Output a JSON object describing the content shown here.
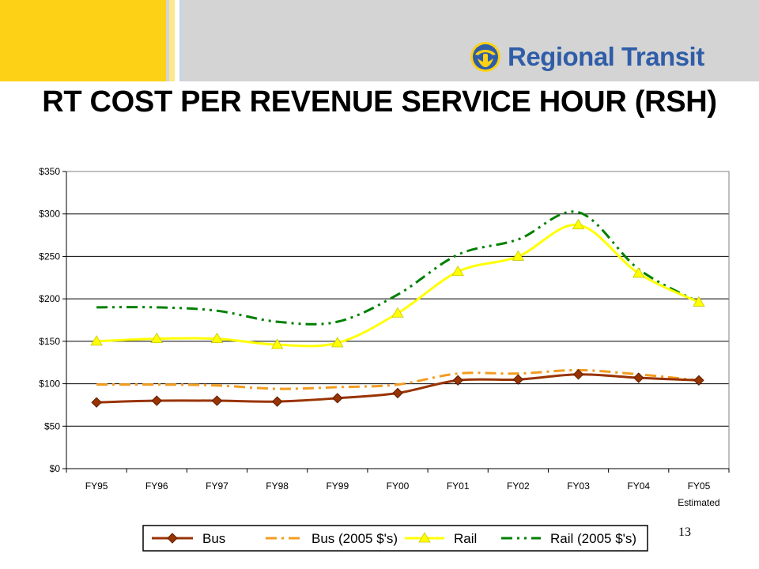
{
  "logo": {
    "text": "Regional Transit"
  },
  "title": "RT COST PER REVENUE SERVICE HOUR (RSH)",
  "page_number": "13",
  "colors": {
    "header_gray": "#d4d4d4",
    "header_yellow": "#fcd116",
    "logo_blue": "#2f5da8",
    "bus": "#993300",
    "bus_2005": "#f39c1f",
    "rail": "#ffff00",
    "rail_2005": "#008000"
  },
  "chart_data": {
    "type": "line",
    "title": "",
    "xlabel": "",
    "ylabel": "",
    "categories": [
      "FY95",
      "FY96",
      "FY97",
      "FY98",
      "FY99",
      "FY00",
      "FY01",
      "FY02",
      "FY03",
      "FY04",
      "FY05"
    ],
    "category_sublabels": [
      "",
      "",
      "",
      "",
      "",
      "",
      "",
      "",
      "",
      "",
      "Estimated"
    ],
    "ylim": [
      0,
      350
    ],
    "y_ticks": [
      0,
      50,
      100,
      150,
      200,
      250,
      300,
      350
    ],
    "y_tick_labels": [
      "$0",
      "$50",
      "$100",
      "$150",
      "$200",
      "$250",
      "$300",
      "$350"
    ],
    "grid": true,
    "legend_position": "bottom",
    "series": [
      {
        "name": "Bus",
        "color": "#993300",
        "dash": "",
        "marker": "diamond",
        "values": [
          78,
          80,
          80,
          79,
          83,
          89,
          104,
          105,
          111,
          107,
          104
        ]
      },
      {
        "name": "Bus (2005 $'s)",
        "color": "#f39c1f",
        "dash": "14 6 3 6",
        "marker": "none",
        "values": [
          99,
          99,
          98,
          94,
          96,
          99,
          112,
          112,
          116,
          111,
          104
        ]
      },
      {
        "name": "Rail",
        "color": "#ffff00",
        "dash": "",
        "marker": "triangle",
        "values": [
          150,
          153,
          153,
          146,
          148,
          183,
          232,
          250,
          287,
          230,
          196
        ]
      },
      {
        "name": "Rail (2005 $'s)",
        "color": "#008000",
        "dash": "14 6 3 6 3 6",
        "marker": "none",
        "values": [
          190,
          190,
          186,
          173,
          173,
          205,
          252,
          270,
          302,
          235,
          196
        ]
      }
    ]
  }
}
